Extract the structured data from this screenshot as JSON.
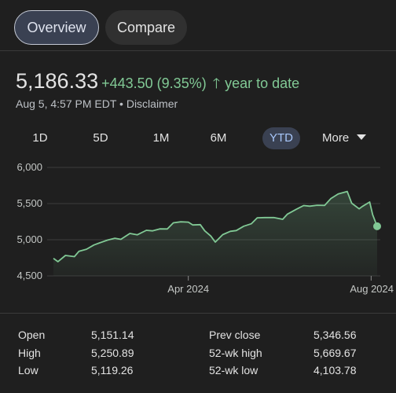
{
  "tabs": [
    {
      "label": "Overview",
      "active": true
    },
    {
      "label": "Compare",
      "active": false
    }
  ],
  "quote": {
    "price": "5,186.33",
    "change": "+443.50 (9.35%)",
    "direction_icon": "arrow-up-icon",
    "period": "year to date",
    "timestamp": "Aug 5, 4:57 PM EDT",
    "disclaimer": "Disclaimer",
    "positive_color": "#81c995"
  },
  "ranges": [
    {
      "label": "1D",
      "selected": false
    },
    {
      "label": "5D",
      "selected": false
    },
    {
      "label": "1M",
      "selected": false
    },
    {
      "label": "6M",
      "selected": false
    },
    {
      "label": "YTD",
      "selected": true
    }
  ],
  "more_label": "More",
  "chart_data": {
    "type": "area",
    "y_ticks": [
      "6,000",
      "5,500",
      "5,000",
      "4,500"
    ],
    "ylim": [
      4500,
      6000
    ],
    "x_tick_labels": [
      "Apr 2024",
      "Aug 2024"
    ],
    "line_color": "#81c995",
    "grid": true,
    "x": [
      "Jan 2",
      "Jan 5",
      "Jan 10",
      "Jan 16",
      "Jan 19",
      "Jan 24",
      "Jan 29",
      "Feb 2",
      "Feb 7",
      "Feb 12",
      "Feb 16",
      "Feb 22",
      "Feb 27",
      "Mar 4",
      "Mar 8",
      "Mar 13",
      "Mar 18",
      "Mar 22",
      "Mar 27",
      "Apr 1",
      "Apr 4",
      "Apr 9",
      "Apr 12",
      "Apr 16",
      "Apr 19",
      "Apr 24",
      "Apr 29",
      "May 3",
      "May 8",
      "May 13",
      "May 17",
      "May 22",
      "May 28",
      "Jun 3",
      "Jun 6",
      "Jun 12",
      "Jun 17",
      "Jun 21",
      "Jun 26",
      "Jul 1",
      "Jul 5",
      "Jul 10",
      "Jul 16",
      "Jul 19",
      "Jul 24",
      "Jul 26",
      "Jul 31",
      "Aug 2",
      "Aug 5"
    ],
    "values": [
      4742,
      4697,
      4783,
      4766,
      4839,
      4868,
      4927,
      4958,
      4995,
      5021,
      5005,
      5087,
      5069,
      5130,
      5123,
      5150,
      5149,
      5234,
      5248,
      5243,
      5204,
      5209,
      5123,
      5051,
      4967,
      5071,
      5116,
      5127,
      5187,
      5221,
      5303,
      5307,
      5306,
      5283,
      5352,
      5421,
      5473,
      5464,
      5477,
      5475,
      5567,
      5633,
      5667,
      5505,
      5427,
      5459,
      5522,
      5346,
      5186
    ]
  },
  "stats": [
    {
      "label": "Open",
      "value": "5,151.14",
      "label2": "Prev close",
      "value2": "5,346.56"
    },
    {
      "label": "High",
      "value": "5,250.89",
      "label2": "52-wk high",
      "value2": "5,669.67"
    },
    {
      "label": "Low",
      "value": "5,119.26",
      "label2": "52-wk low",
      "value2": "4,103.78"
    }
  ]
}
